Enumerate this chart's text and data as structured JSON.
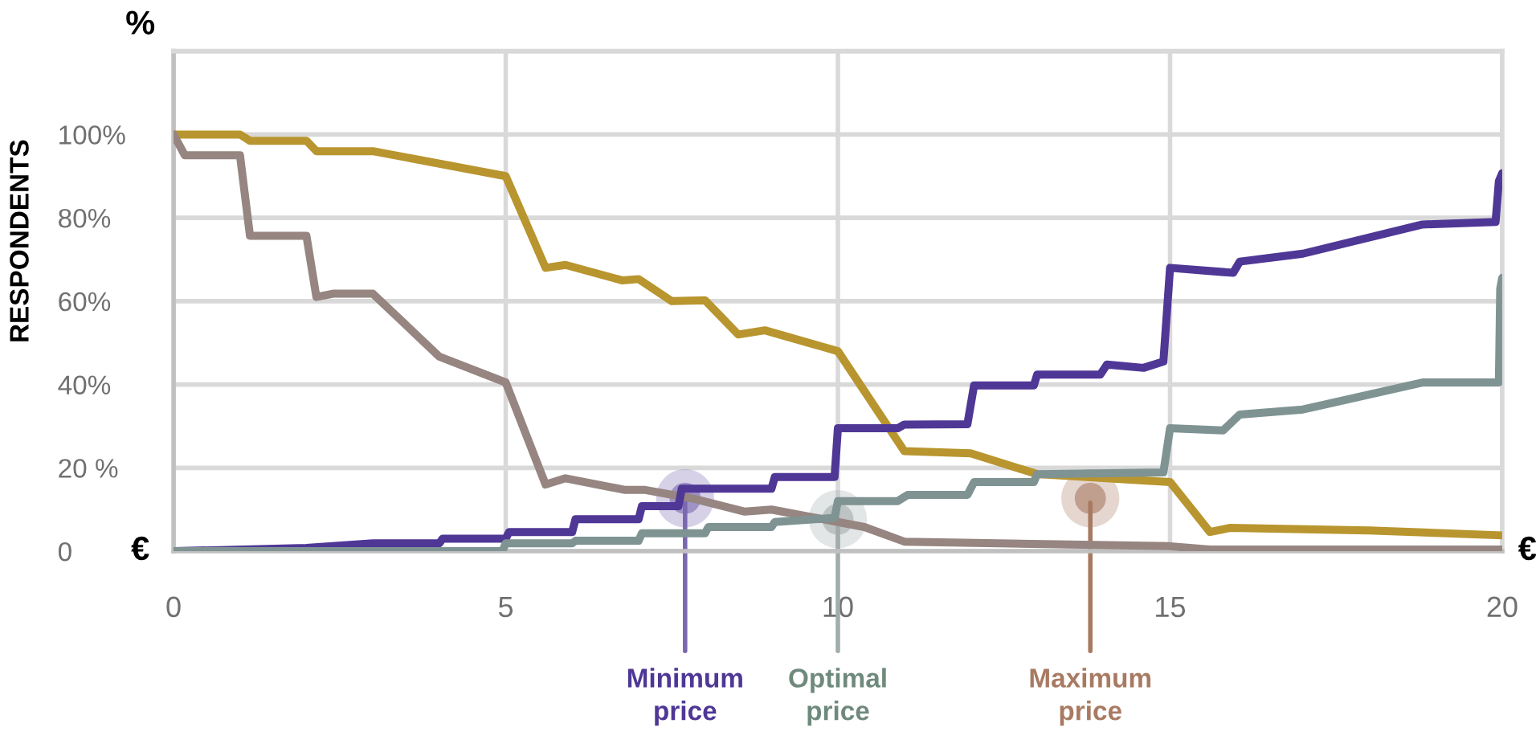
{
  "chart_data": {
    "type": "line",
    "ylabel": "RESPONDENTS",
    "xlim": [
      0,
      20
    ],
    "xticks": [
      0,
      5,
      10,
      15,
      20
    ],
    "ylim": [
      0,
      120
    ],
    "yticks": [
      {
        "value": 0,
        "label": "0"
      },
      {
        "value": 20,
        "label": "20 %"
      },
      {
        "value": 40,
        "label": "40%"
      },
      {
        "value": 60,
        "label": "60%"
      },
      {
        "value": 80,
        "label": "80%"
      },
      {
        "value": 100,
        "label": "100%"
      },
      {
        "value": 120,
        "label": null
      }
    ],
    "grid": true,
    "legend": false,
    "marker": "none",
    "line_style": "solid",
    "series": [
      {
        "color": "#b8952e",
        "x": [
          0,
          1.0,
          1.15,
          2.0,
          2.15,
          3.0,
          5.0,
          5.6,
          5.9,
          6.75,
          7.0,
          7.5,
          8.0,
          8.5,
          8.9,
          10,
          11,
          12,
          13,
          15,
          15.6,
          15.9,
          18,
          20
        ],
        "values": [
          100,
          100,
          98.5,
          98.5,
          96,
          96,
          90,
          68,
          68.7,
          65,
          65.3,
          60,
          60.2,
          52,
          53,
          48,
          24,
          23.5,
          18.5,
          16.6,
          4.6,
          5.6,
          5,
          3.8
        ]
      },
      {
        "color": "#968581",
        "x": [
          0,
          0.17,
          1.0,
          1.15,
          2.0,
          2.15,
          2.4,
          3.0,
          4.0,
          5.0,
          5.6,
          5.9,
          6.8,
          7.1,
          7.8,
          8.6,
          9.0,
          10.4,
          11,
          15,
          15.6,
          20
        ],
        "values": [
          100,
          95,
          95,
          75.7,
          75.7,
          61,
          61.8,
          61.8,
          46.7,
          40.5,
          16,
          17.5,
          14.7,
          14.7,
          12.7,
          9.5,
          10,
          5.8,
          2.3,
          1.2,
          0.4,
          0.4
        ]
      },
      {
        "color": "#4f3796",
        "x": [
          0,
          2,
          3,
          4,
          4.05,
          5,
          5.05,
          6,
          6.05,
          7,
          7.05,
          7.6,
          7.65,
          9,
          9.05,
          9.95,
          10.0,
          10.9,
          11.0,
          11.95,
          12.05,
          12.95,
          13.0,
          13.95,
          14.05,
          14.6,
          14.9,
          15.0,
          15.4,
          15.95,
          16.05,
          17,
          18.8,
          19.9,
          19.95,
          20
        ],
        "values": [
          0,
          0.8,
          1.9,
          1.9,
          3,
          3,
          4.6,
          4.6,
          7.7,
          7.7,
          10.8,
          10.8,
          15,
          15,
          17.8,
          17.8,
          29.5,
          29.5,
          30.4,
          30.5,
          39.8,
          39.8,
          42.4,
          42.4,
          44.8,
          44,
          45.5,
          68,
          67.5,
          66.8,
          69.5,
          71.4,
          78.4,
          79,
          88.8,
          90.7
        ]
      },
      {
        "color": "#7f9393",
        "x": [
          0,
          4.95,
          5.0,
          6,
          6.05,
          7,
          7.05,
          8,
          8.05,
          9,
          9.05,
          9.95,
          10.0,
          10.9,
          11.05,
          11.95,
          12.05,
          12.95,
          13.0,
          14.9,
          15.0,
          15.8,
          16.05,
          17,
          18.8,
          19.95,
          19.97,
          20
        ],
        "values": [
          0,
          0,
          1.9,
          1.9,
          2.5,
          2.5,
          4.3,
          4.3,
          5.8,
          5.8,
          7,
          8,
          12,
          12,
          13.5,
          13.5,
          16.6,
          16.6,
          18.5,
          18.9,
          29.5,
          29,
          32.8,
          34,
          40.5,
          40.5,
          63,
          65.6
        ]
      }
    ],
    "annotations": [
      "%",
      "€",
      "€",
      {
        "text": "Minimum\nprice",
        "x": 7.7,
        "y": 12.7
      },
      {
        "text": "Optimal\nprice",
        "x": 10.0,
        "y": 7.7
      },
      {
        "text": "Maximum\nprice",
        "x": 13.8,
        "y": 12.7
      }
    ]
  }
}
